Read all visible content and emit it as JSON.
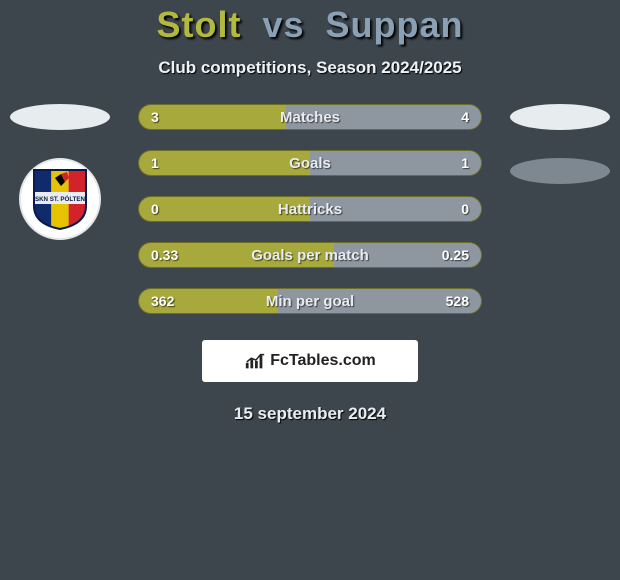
{
  "title": {
    "player1": "Stolt",
    "vs": "vs",
    "player2": "Suppan"
  },
  "subtitle": "Club competitions, Season 2024/2025",
  "colors": {
    "player1_bar": "#a7a93c",
    "player2_bar": "#8e96a0",
    "bg": "#3e464d",
    "title_p1": "#b2b93e",
    "title_p2": "#8aa1b5"
  },
  "rows": [
    {
      "label": "Matches",
      "left": "3",
      "right": "4",
      "left_pct": 42.9
    },
    {
      "label": "Goals",
      "left": "1",
      "right": "1",
      "left_pct": 50
    },
    {
      "label": "Hattricks",
      "left": "0",
      "right": "0",
      "left_pct": 50
    },
    {
      "label": "Goals per match",
      "left": "0.33",
      "right": "0.25",
      "left_pct": 56.9
    },
    {
      "label": "Min per goal",
      "left": "362",
      "right": "528",
      "left_pct": 40.7
    }
  ],
  "brand": "FcTables.com",
  "date": "15 september 2024",
  "club_badge": {
    "stripes": [
      "#102a6e",
      "#e5c300",
      "#d2232a"
    ],
    "banner": "#e8ecef",
    "banner_text": "SKN ST. PÖLTEN"
  }
}
